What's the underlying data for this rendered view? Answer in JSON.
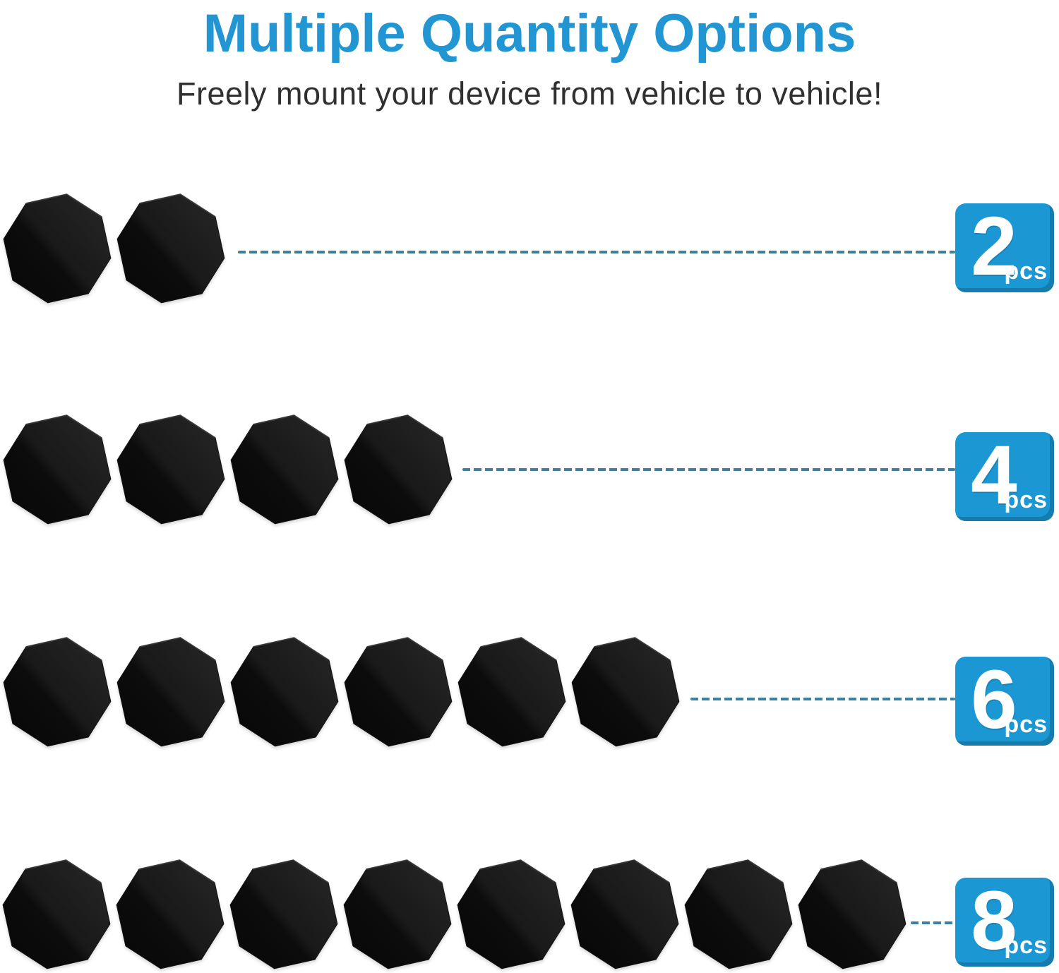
{
  "title": "Multiple Quantity Options",
  "subtitle": "Freely mount your device from vehicle to vehicle!",
  "disc_shape": "octagon-plate",
  "rows": [
    {
      "count": 2,
      "qty": "2",
      "unit": "pcs"
    },
    {
      "count": 4,
      "qty": "4",
      "unit": "pcs"
    },
    {
      "count": 6,
      "qty": "6",
      "unit": "pcs"
    },
    {
      "count": 8,
      "qty": "8",
      "unit": "pcs"
    }
  ],
  "colors": {
    "title_blue": "#2196d3",
    "badge_blue": "#1b97d4",
    "dash_teal": "#3f7f9f",
    "disc_dark": "#070707",
    "disc_light": "#262626"
  }
}
